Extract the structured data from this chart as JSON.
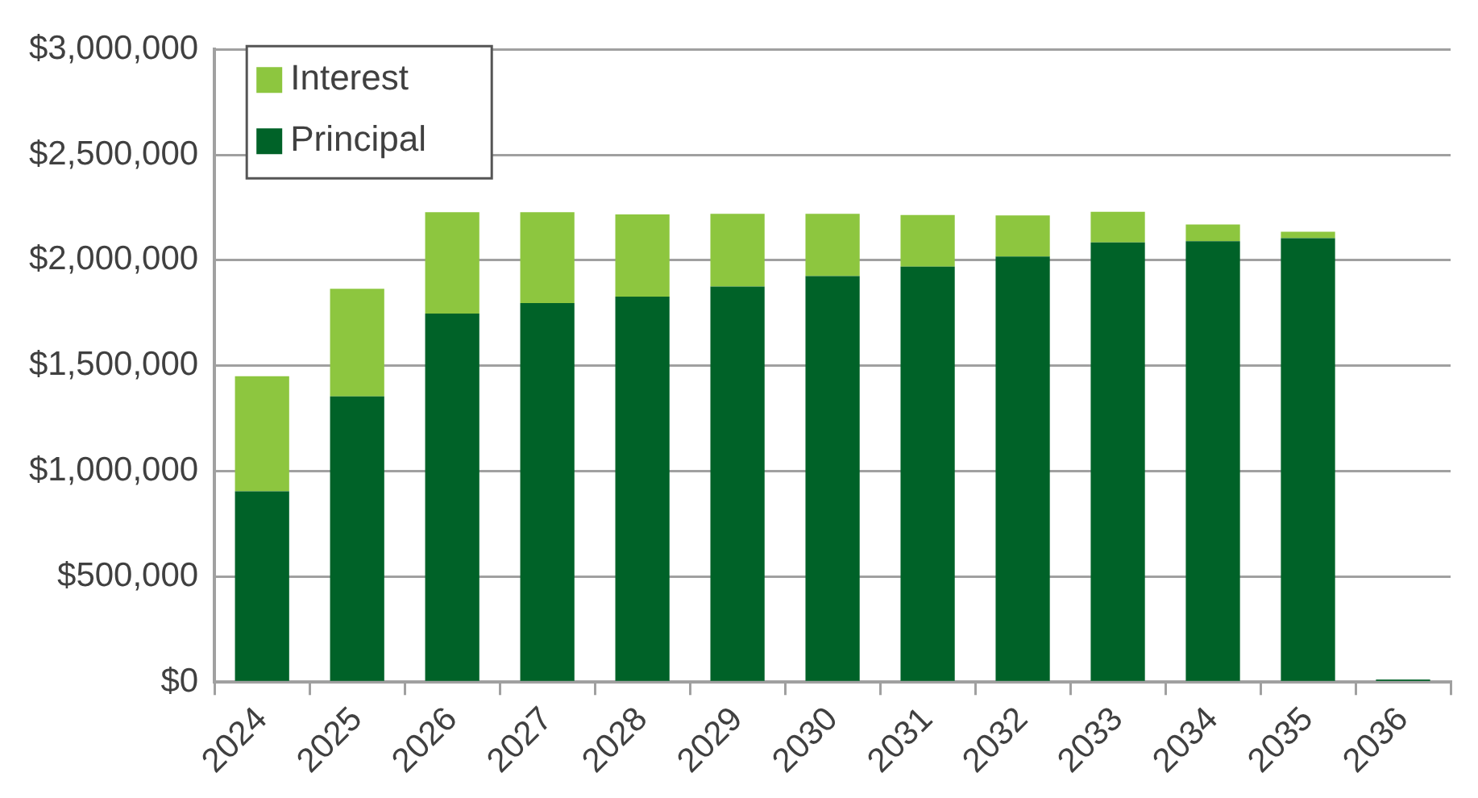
{
  "chart_data": {
    "type": "bar",
    "stacked": true,
    "categories": [
      "2024",
      "2025",
      "2026",
      "2027",
      "2028",
      "2029",
      "2030",
      "2031",
      "2032",
      "2033",
      "2034",
      "2035",
      "2036"
    ],
    "series": [
      {
        "name": "Principal",
        "color": "#006228",
        "values": [
          905000,
          1355000,
          1747500,
          1797500,
          1827500,
          1875000,
          1925000,
          1970000,
          2017500,
          2085000,
          2090000,
          2105000,
          12500
        ]
      },
      {
        "name": "Interest",
        "color": "#8dc63f",
        "values": [
          545000,
          510000,
          480000,
          430000,
          390000,
          345000,
          295000,
          245000,
          195000,
          145000,
          80000,
          30000,
          0
        ]
      }
    ],
    "ylim": [
      0,
      3000000
    ],
    "yticks": [
      {
        "value": 0,
        "label": "$0"
      },
      {
        "value": 500000,
        "label": "$500,000"
      },
      {
        "value": 1000000,
        "label": "$1,000,000"
      },
      {
        "value": 1500000,
        "label": "$1,500,000"
      },
      {
        "value": 2000000,
        "label": "$2,000,000"
      },
      {
        "value": 2500000,
        "label": "$2,500,000"
      },
      {
        "value": 3000000,
        "label": "$3,000,000"
      }
    ],
    "grid": "y",
    "legend": "top left"
  }
}
